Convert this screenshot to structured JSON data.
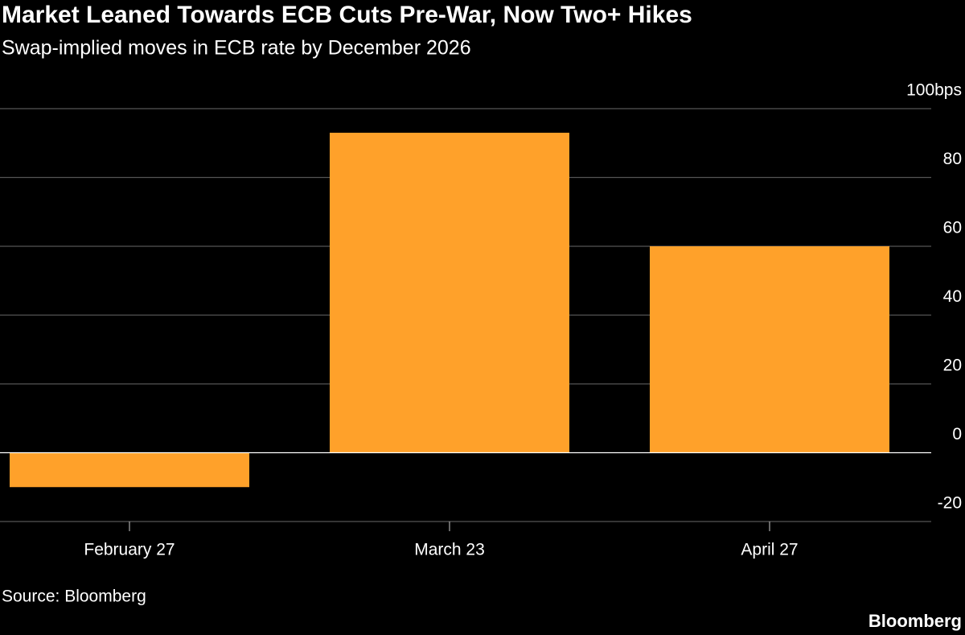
{
  "chart_data": {
    "type": "bar",
    "title": "Market Leaned Towards ECB Cuts Pre-War, Now Two+ Hikes",
    "subtitle": "Swap-implied moves in ECB rate by December 2026",
    "categories": [
      "February 27",
      "March 23",
      "April 27"
    ],
    "values": [
      -10,
      93,
      60
    ],
    "color": "#ffa12a",
    "ylim": [
      -20,
      100
    ],
    "yticks": [
      -20,
      0,
      20,
      40,
      60,
      80,
      {
        "value": 100,
        "label": "100bps"
      }
    ],
    "grid": true,
    "source": "Source: Bloomberg",
    "logo": "Bloomberg"
  }
}
